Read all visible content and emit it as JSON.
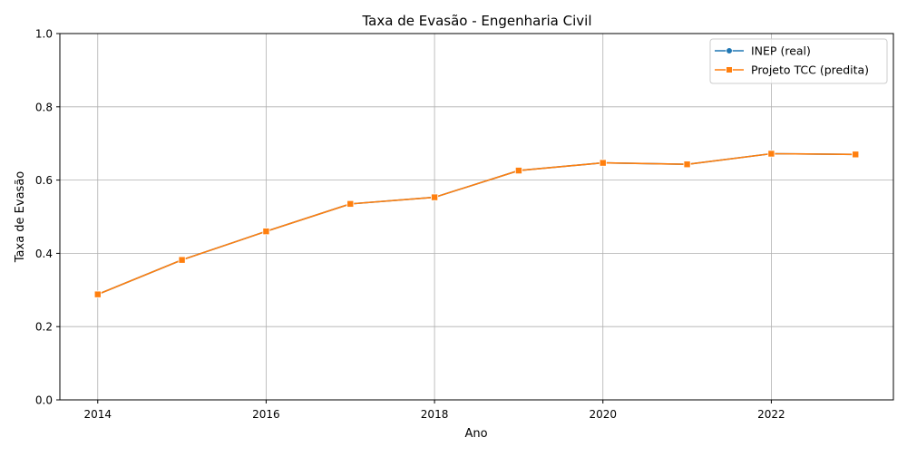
{
  "chart_data": {
    "type": "line",
    "title": "Taxa de Evasão - Engenharia Civil",
    "xlabel": "Ano",
    "ylabel": "Taxa de Evasão",
    "x": [
      2014,
      2015,
      2016,
      2017,
      2018,
      2019,
      2020,
      2021,
      2022,
      2023
    ],
    "xlim": [
      2013.55,
      2023.45
    ],
    "ylim": [
      0,
      1
    ],
    "xticks": [
      2014,
      2016,
      2018,
      2020,
      2022
    ],
    "yticks": [
      0.0,
      0.2,
      0.4,
      0.6,
      0.8,
      1.0
    ],
    "grid": true,
    "legend_position": "top-right",
    "series": [
      {
        "name": "INEP (real)",
        "color": "#1f77b4",
        "marker": "circle",
        "values": [
          0.288,
          0.382,
          0.46,
          0.535,
          0.553,
          0.626,
          0.647,
          0.643,
          0.672,
          0.67
        ]
      },
      {
        "name": "Projeto TCC (predita)",
        "color": "#ff7f0e",
        "marker": "square",
        "values": [
          0.288,
          0.382,
          0.46,
          0.535,
          0.553,
          0.626,
          0.647,
          0.643,
          0.672,
          0.67
        ]
      }
    ]
  }
}
